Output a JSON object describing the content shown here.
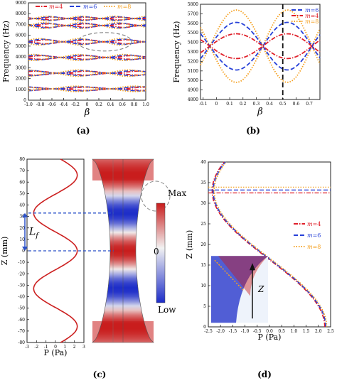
{
  "panel_labels": [
    "(a)",
    "(b)",
    "(c)",
    "(d)"
  ],
  "legend_m_prefix": "m",
  "colors": {
    "m4": "#e0202a",
    "m6": "#2640d8",
    "m8": "#f5a020",
    "axis": "#222222",
    "profile": "#cc2020",
    "marker": "#2a50c8",
    "ellipse": "#888888",
    "map_high": "#c81c1c",
    "map_low": "#1c2cc8",
    "map_mid": "#f2f2f2"
  },
  "chart_data": [
    {
      "panel": "a",
      "type": "line",
      "xlabel": "β",
      "ylabel": "Frequency (Hz)",
      "xlim": [
        -1.0,
        1.0
      ],
      "ylim": [
        0,
        9000
      ],
      "xticks": [
        "-1.0",
        "-0.8",
        "-0.6",
        "-0.4",
        "-0.2",
        "0",
        "0.2",
        "0.4",
        "0.6",
        "0.8",
        "1.0"
      ],
      "yticks": [
        "0",
        "1000",
        "2000",
        "3000",
        "4000",
        "5000",
        "6000",
        "7000",
        "8000",
        "9000"
      ],
      "legend": [
        "m=4",
        "m=6",
        "m=8"
      ],
      "legend_position": "top",
      "bands": [
        {
          "base": 1050,
          "amp": 250
        },
        {
          "base": 2500,
          "amp": 300
        },
        {
          "base": 3950,
          "amp": 280
        },
        {
          "base": 5400,
          "amp": 300
        },
        {
          "base": 6900,
          "amp": 280
        },
        {
          "base": 7550,
          "amp": 220
        }
      ],
      "annotation": "dashed ellipse around the 5400 Hz band",
      "annotation_center": [
        0.3,
        5400
      ]
    },
    {
      "panel": "b",
      "type": "line",
      "xlabel": "β",
      "ylabel": "Frequency (Hz)",
      "xlim": [
        -0.12,
        0.78
      ],
      "ylim": [
        4800,
        5800
      ],
      "xticks": [
        "-0.1",
        "0",
        "0.1",
        "0.2",
        "0.3",
        "0.4",
        "0.5",
        "0.6",
        "0.7"
      ],
      "yticks": [
        "4800",
        "4900",
        "5000",
        "5100",
        "5200",
        "5300",
        "5400",
        "5500",
        "5600",
        "5700",
        "5800"
      ],
      "legend": [
        "m=6",
        "m=4",
        "m=8"
      ],
      "legend_position": "top-right",
      "vertical_marker_x": 0.5,
      "crossing_points": [
        [
          -0.05,
          5360
        ],
        [
          0.35,
          5360
        ],
        [
          0.72,
          5360
        ]
      ],
      "branch_amplitudes": {
        "m4": 130,
        "m6": 250,
        "m8": 380
      }
    },
    {
      "panel": "c",
      "type": "line",
      "xlabel": "P (Pa)",
      "ylabel": "Z (mm)",
      "xlim": [
        -3,
        3
      ],
      "ylim": [
        -80,
        80
      ],
      "xticks": [
        "-3",
        "-2",
        "-1",
        "0",
        "1",
        "2",
        "3"
      ],
      "yticks": [
        "-80",
        "-70",
        "-60",
        "-50",
        "-40",
        "-30",
        "-20",
        "-10",
        "0",
        "10",
        "20",
        "30",
        "40",
        "50",
        "60",
        "70",
        "80"
      ],
      "profile": "P = 2.3·cos(2π·Z/66)",
      "amplitude": 2.3,
      "period_mm": 66,
      "dimension_label": "L",
      "dimension_label_subscript": "f",
      "dimension_from_z": 0,
      "dimension_to_z": 33,
      "colorbar_max": "Max",
      "colorbar_mid": "0",
      "colorbar_min": "Low"
    },
    {
      "panel": "d",
      "type": "line",
      "xlabel": "P (Pa)",
      "ylabel": "Z (mm)",
      "xlim": [
        -2.5,
        2.5
      ],
      "ylim": [
        0,
        40
      ],
      "xticks": [
        "-2.5",
        "-2.0",
        "-1.5",
        "-1.0",
        "-0.5",
        "0.0",
        "0.5",
        "1.0",
        "1.5",
        "2.0",
        "2.5"
      ],
      "yticks": [
        "0",
        "5",
        "10",
        "15",
        "20",
        "25",
        "30",
        "35",
        "40"
      ],
      "legend": [
        "m=4",
        "m=6",
        "m=8"
      ],
      "legend_position": "right",
      "profile": "P = 2.3·cos(π·Z/33)",
      "horizontal_levels": {
        "m4": 32.5,
        "m6": 33.2,
        "m8": 33.9
      },
      "inset_axis_label": "Z"
    }
  ]
}
